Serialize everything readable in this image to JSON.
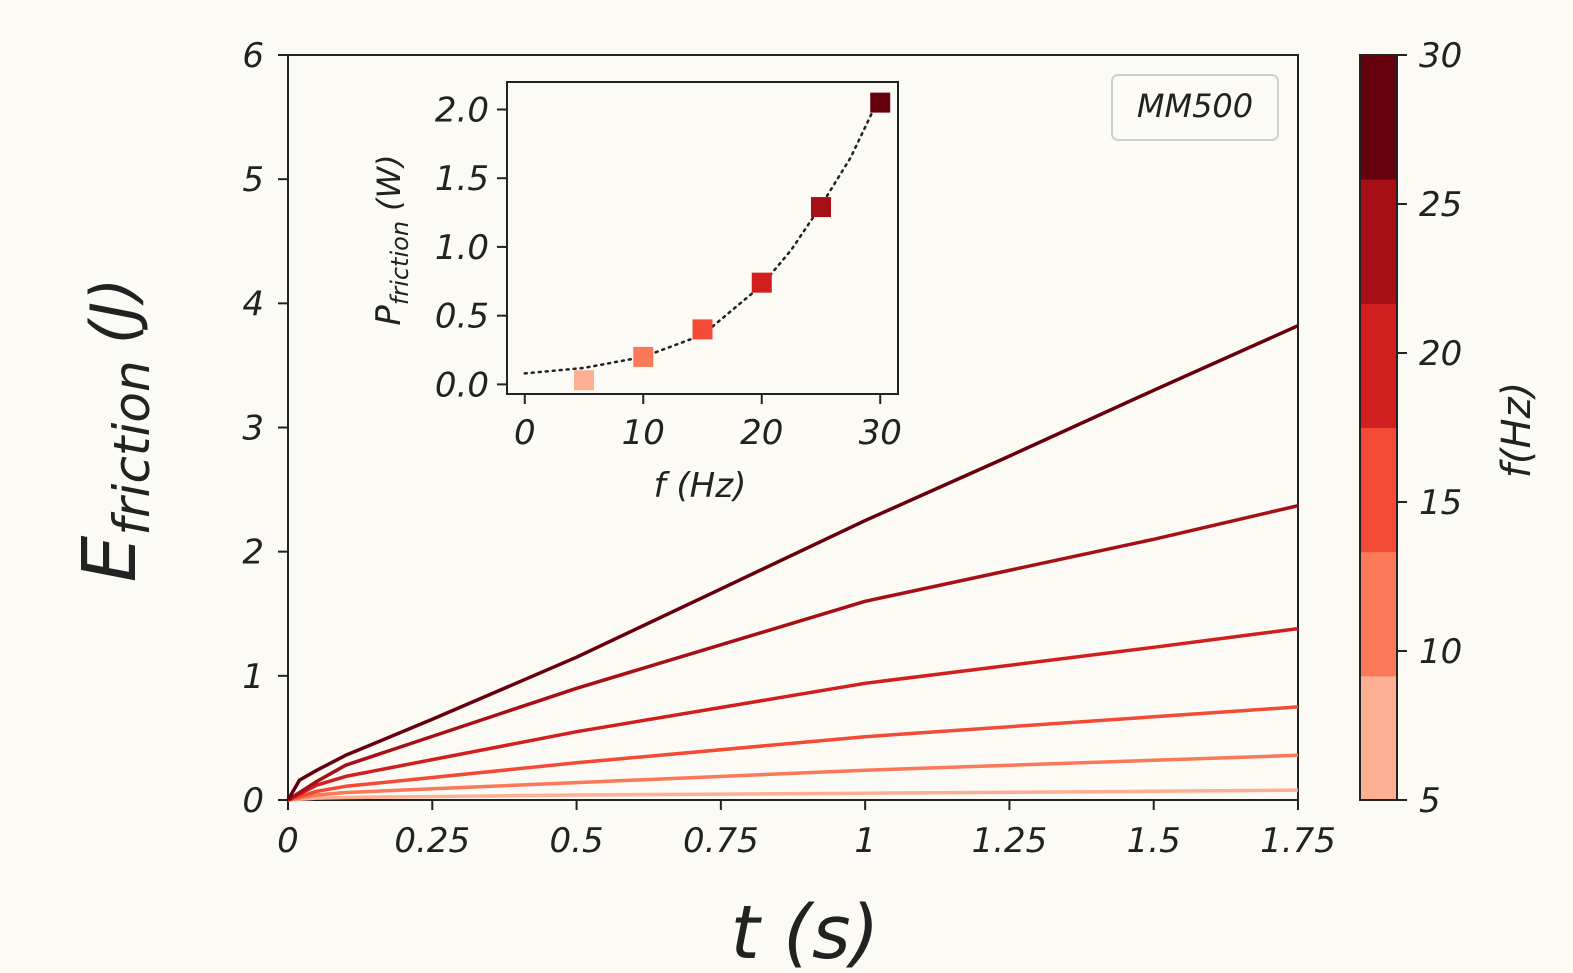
{
  "chart_data": [
    {
      "type": "line",
      "xlabel": "t (s)",
      "ylabel": {
        "main": "E",
        "sub": "friction",
        "unit": "(J)"
      },
      "xlim": [
        0,
        1.75
      ],
      "ylim": [
        0,
        6
      ],
      "xticks": [
        0,
        0.25,
        0.5,
        0.75,
        1,
        1.25,
        1.5,
        1.75
      ],
      "xtick_labels": [
        "0",
        "0.25",
        "0.5",
        "0.75",
        "1",
        "1.25",
        "1.5",
        "1.75"
      ],
      "yticks": [
        0,
        1,
        2,
        3,
        4,
        5,
        6
      ],
      "ytick_labels": [
        "0",
        "1",
        "2",
        "3",
        "4",
        "5",
        "6"
      ],
      "legend": {
        "text": "MM500",
        "placement": "top-right"
      },
      "grid": false,
      "series": [
        {
          "f": 5,
          "color": "#fcaf93",
          "x": [
            0,
            0.05,
            0.1,
            0.5,
            1.0,
            1.5,
            1.75
          ],
          "y": [
            0,
            0.015,
            0.02,
            0.04,
            0.055,
            0.07,
            0.08
          ]
        },
        {
          "f": 10,
          "color": "#fb7858",
          "x": [
            0,
            0.05,
            0.1,
            0.5,
            1.0,
            1.5,
            1.75
          ],
          "y": [
            0,
            0.04,
            0.06,
            0.14,
            0.24,
            0.32,
            0.36
          ]
        },
        {
          "f": 15,
          "color": "#f34a36",
          "x": [
            0,
            0.05,
            0.1,
            0.5,
            1.0,
            1.5,
            1.75
          ],
          "y": [
            0,
            0.07,
            0.11,
            0.3,
            0.51,
            0.67,
            0.75
          ]
        },
        {
          "f": 20,
          "color": "#d11e1f",
          "x": [
            0,
            0.05,
            0.1,
            0.5,
            1.0,
            1.5,
            1.75
          ],
          "y": [
            0,
            0.12,
            0.19,
            0.55,
            0.94,
            1.23,
            1.38
          ]
        },
        {
          "f": 25,
          "color": "#a50f15",
          "x": [
            0,
            0.05,
            0.1,
            0.5,
            1.0,
            1.5,
            1.75
          ],
          "y": [
            0,
            0.15,
            0.28,
            0.9,
            1.6,
            2.1,
            2.37
          ]
        },
        {
          "f": 30,
          "color": "#67000d",
          "x": [
            0,
            0.02,
            0.05,
            0.1,
            0.25,
            0.5,
            0.75,
            1.0,
            1.25,
            1.5,
            1.75
          ],
          "y": [
            0,
            0.16,
            0.24,
            0.36,
            0.65,
            1.15,
            1.7,
            2.25,
            2.77,
            3.3,
            3.82
          ]
        }
      ]
    },
    {
      "type": "scatter",
      "xlabel": "f (Hz)",
      "ylabel": {
        "main": "P",
        "sub": "friction",
        "unit": "(W)"
      },
      "xlim": [
        -1.5,
        31.5
      ],
      "ylim": [
        -0.07,
        2.2
      ],
      "xticks": [
        0,
        10,
        20,
        30
      ],
      "xtick_labels": [
        "0",
        "10",
        "20",
        "30"
      ],
      "yticks": [
        0,
        0.5,
        1.0,
        1.5,
        2.0
      ],
      "ytick_labels": [
        "0.0",
        "0.5",
        "1.0",
        "1.5",
        "2.0"
      ],
      "points": [
        {
          "x": 5,
          "y": 0.03,
          "color": "#fcaf93"
        },
        {
          "x": 10,
          "y": 0.2,
          "color": "#fb7858"
        },
        {
          "x": 15,
          "y": 0.4,
          "color": "#f34a36"
        },
        {
          "x": 20,
          "y": 0.74,
          "color": "#d11e1f"
        },
        {
          "x": 25,
          "y": 1.29,
          "color": "#a50f15"
        },
        {
          "x": 30,
          "y": 2.05,
          "color": "#67000d"
        }
      ],
      "fit": {
        "style": "dotted",
        "x": [
          0,
          5,
          10,
          15,
          20,
          22.5,
          25,
          27.5,
          30
        ],
        "y": [
          0.08,
          0.12,
          0.2,
          0.36,
          0.72,
          0.98,
          1.3,
          1.65,
          2.1
        ]
      }
    }
  ],
  "colorbar": {
    "label": "f(Hz)",
    "range": [
      5,
      30
    ],
    "ticks": [
      5,
      10,
      15,
      20,
      25,
      30
    ],
    "tick_labels": [
      "5",
      "10",
      "15",
      "20",
      "25",
      "30"
    ],
    "colors": [
      "#fcaf93",
      "#fb7858",
      "#f34a36",
      "#d11e1f",
      "#a50f15",
      "#67000d"
    ]
  }
}
